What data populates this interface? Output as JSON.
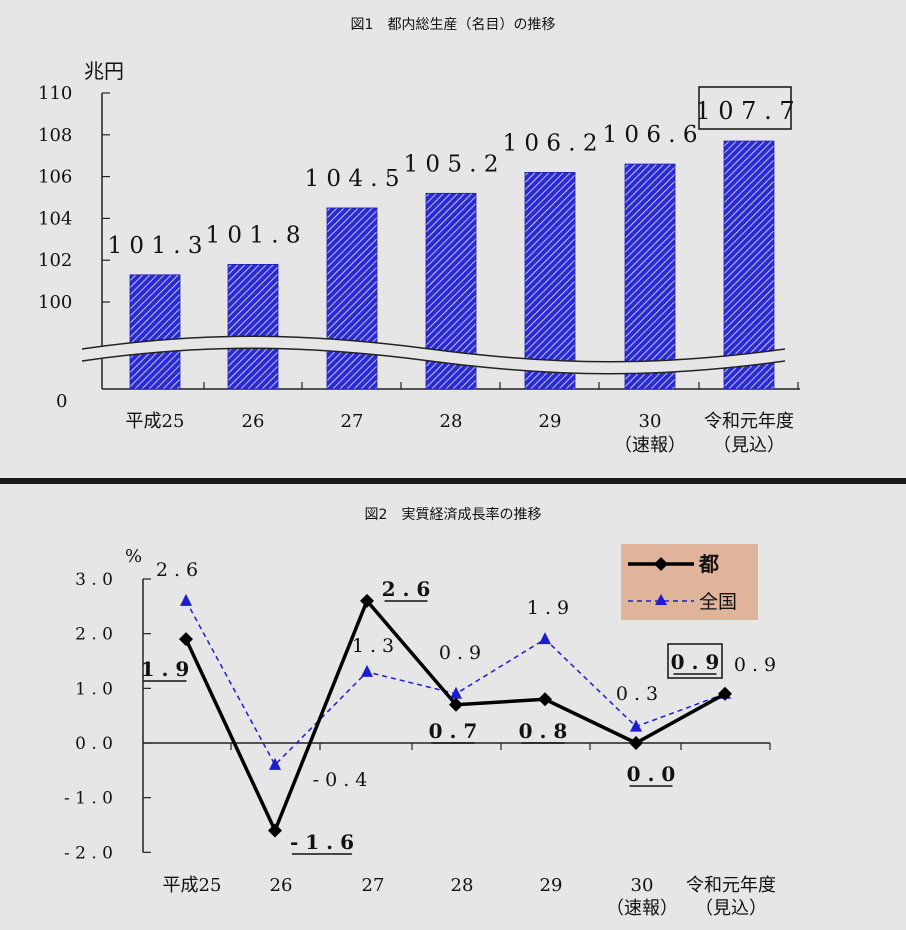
{
  "chart_data": [
    {
      "type": "bar",
      "title": "図1　都内総生産（名目）の推移",
      "unit_label": "兆円",
      "ylim": [
        0,
        110
      ],
      "axis_break": true,
      "y_ticks": [
        "110",
        "108",
        "106",
        "104",
        "102",
        "100",
        "0"
      ],
      "categories": [
        [
          "平成25"
        ],
        [
          "26"
        ],
        [
          "27"
        ],
        [
          "28"
        ],
        [
          "29"
        ],
        [
          "30",
          "（速報）"
        ],
        [
          "令和元年度",
          "（見込）"
        ]
      ],
      "values": [
        101.3,
        101.8,
        104.5,
        105.2,
        106.2,
        106.6,
        107.7
      ],
      "value_labels": [
        "101.3",
        "101.8",
        "104.5",
        "105.2",
        "106.2",
        "106.6",
        "107.7"
      ],
      "highlight_index": 6,
      "colors": {
        "bar": "#2b2bd6",
        "hatch": "#ffffff"
      }
    },
    {
      "type": "line",
      "title": "図2　実質経済成長率の推移",
      "unit_label": "%",
      "ylim": [
        -2.0,
        3.0
      ],
      "y_ticks": [
        "3.0",
        "2.0",
        "1.0",
        "0.0",
        "-1.0",
        "-2.0"
      ],
      "categories": [
        [
          "平成25"
        ],
        [
          "26"
        ],
        [
          "27"
        ],
        [
          "28"
        ],
        [
          "29"
        ],
        [
          "30",
          "（速報）"
        ],
        [
          "令和元年度",
          "（見込）"
        ]
      ],
      "series": [
        {
          "name": "都",
          "values": [
            1.9,
            -1.6,
            2.6,
            0.7,
            0.8,
            0.0,
            0.9
          ],
          "labels": [
            "1.9",
            "-1.6",
            "2.6",
            "0.7",
            "0.8",
            "0.0",
            "0.9"
          ],
          "color": "#000000"
        },
        {
          "name": "全国",
          "values": [
            2.6,
            -0.4,
            1.3,
            0.9,
            1.9,
            0.3,
            0.9
          ],
          "labels": [
            "2.6",
            "-0.4",
            "1.3",
            "0.9",
            "1.9",
            "0.3",
            "0.9"
          ],
          "color": "#1c1cd0"
        }
      ],
      "legend_position": "top-right",
      "legend_bg": "#e0b49a"
    }
  ]
}
